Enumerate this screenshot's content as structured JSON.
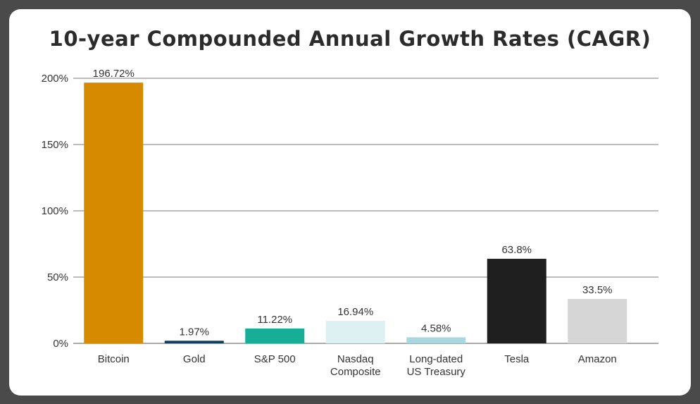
{
  "chart_data": {
    "type": "bar",
    "title": "10-year Compounded Annual Growth Rates (CAGR)",
    "categories": [
      [
        "Bitcoin"
      ],
      [
        "Gold"
      ],
      [
        "S&P 500"
      ],
      [
        "Nasdaq",
        "Composite"
      ],
      [
        "Long-dated",
        "US Treasury"
      ],
      [
        "Tesla"
      ],
      [
        "Amazon"
      ]
    ],
    "values": [
      196.72,
      1.97,
      11.22,
      16.94,
      4.58,
      63.8,
      33.5
    ],
    "value_labels": [
      "196.72%",
      "1.97%",
      "11.22%",
      "16.94%",
      "4.58%",
      "63.8%",
      "33.5%"
    ],
    "colors": [
      "#d68a00",
      "#0f3f5c",
      "#16ae96",
      "#ddf0f2",
      "#a9d7de",
      "#1f1f1f",
      "#d6d6d6"
    ],
    "yticks": [
      0,
      50,
      100,
      150,
      200
    ],
    "ytick_labels": [
      "0%",
      "50%",
      "100%",
      "150%",
      "200%"
    ],
    "ylim": [
      0,
      200
    ],
    "grid": true,
    "xlabel": "",
    "ylabel": ""
  }
}
